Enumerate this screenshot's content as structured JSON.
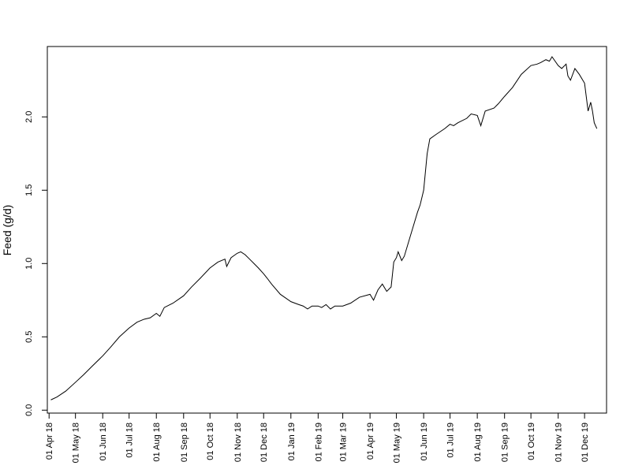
{
  "chart_data": {
    "type": "line",
    "title": "",
    "xlabel": "",
    "ylabel": "Feed (g/d)",
    "x_range": [
      "2018-03-30",
      "2019-12-26"
    ],
    "ylim": [
      -0.02,
      2.48
    ],
    "grid": false,
    "legend": "none",
    "line_color": "#000000",
    "x_ticks": [
      {
        "date": "2018-04-01",
        "label": "01 Apr 18"
      },
      {
        "date": "2018-05-01",
        "label": "01 May 18"
      },
      {
        "date": "2018-06-01",
        "label": "01 Jun 18"
      },
      {
        "date": "2018-07-01",
        "label": "01 Jul 18"
      },
      {
        "date": "2018-08-01",
        "label": "01 Aug 18"
      },
      {
        "date": "2018-09-01",
        "label": "01 Sep 18"
      },
      {
        "date": "2018-10-01",
        "label": "01 Oct 18"
      },
      {
        "date": "2018-11-01",
        "label": "01 Nov 18"
      },
      {
        "date": "2018-12-01",
        "label": "01 Dec 18"
      },
      {
        "date": "2019-01-01",
        "label": "01 Jan 19"
      },
      {
        "date": "2019-02-01",
        "label": "01 Feb 19"
      },
      {
        "date": "2019-03-01",
        "label": "01 Mar 19"
      },
      {
        "date": "2019-04-01",
        "label": "01 Apr 19"
      },
      {
        "date": "2019-05-01",
        "label": "01 May 19"
      },
      {
        "date": "2019-06-01",
        "label": "01 Jun 19"
      },
      {
        "date": "2019-07-01",
        "label": "01 Jul 19"
      },
      {
        "date": "2019-08-01",
        "label": "01 Aug 19"
      },
      {
        "date": "2019-09-01",
        "label": "01 Sep 19"
      },
      {
        "date": "2019-10-01",
        "label": "01 Oct 19"
      },
      {
        "date": "2019-11-01",
        "label": "01 Nov 19"
      },
      {
        "date": "2019-12-01",
        "label": "01 Dec 19"
      }
    ],
    "y_ticks": [
      {
        "value": 0.0,
        "label": "0.0"
      },
      {
        "value": 0.5,
        "label": "0.5"
      },
      {
        "value": 1.0,
        "label": "1.0"
      },
      {
        "value": 1.5,
        "label": "1.5"
      },
      {
        "value": 2.0,
        "label": "2.0"
      }
    ],
    "series": [
      {
        "x": [
          "2018-04-03",
          "2018-04-10",
          "2018-04-20",
          "2018-05-01",
          "2018-05-10",
          "2018-05-20",
          "2018-06-01",
          "2018-06-10",
          "2018-06-20",
          "2018-07-01",
          "2018-07-10",
          "2018-07-18",
          "2018-07-25",
          "2018-08-01",
          "2018-08-05",
          "2018-08-10",
          "2018-08-20",
          "2018-09-01",
          "2018-09-10",
          "2018-09-20",
          "2018-10-01",
          "2018-10-10",
          "2018-10-18",
          "2018-10-20",
          "2018-10-25",
          "2018-11-01",
          "2018-11-05",
          "2018-11-10",
          "2018-11-15",
          "2018-11-20",
          "2018-11-25",
          "2018-12-01",
          "2018-12-05",
          "2018-12-10",
          "2018-12-20",
          "2019-01-01",
          "2019-01-10",
          "2019-01-15",
          "2019-01-20",
          "2019-01-25",
          "2019-02-01",
          "2019-02-05",
          "2019-02-10",
          "2019-02-15",
          "2019-02-20",
          "2019-03-01",
          "2019-03-10",
          "2019-03-20",
          "2019-04-01",
          "2019-04-05",
          "2019-04-10",
          "2019-04-15",
          "2019-04-20",
          "2019-04-25",
          "2019-04-28",
          "2019-05-01",
          "2019-05-03",
          "2019-05-07",
          "2019-05-10",
          "2019-05-15",
          "2019-05-20",
          "2019-05-25",
          "2019-05-28",
          "2019-06-01",
          "2019-06-05",
          "2019-06-08",
          "2019-06-15",
          "2019-06-25",
          "2019-07-01",
          "2019-07-05",
          "2019-07-10",
          "2019-07-20",
          "2019-07-25",
          "2019-08-01",
          "2019-08-05",
          "2019-08-10",
          "2019-08-20",
          "2019-08-25",
          "2019-09-01",
          "2019-09-10",
          "2019-09-20",
          "2019-10-01",
          "2019-10-08",
          "2019-10-12",
          "2019-10-18",
          "2019-10-22",
          "2019-10-25",
          "2019-11-01",
          "2019-11-05",
          "2019-11-10",
          "2019-11-12",
          "2019-11-15",
          "2019-11-20",
          "2019-11-25",
          "2019-12-01",
          "2019-12-05",
          "2019-12-08",
          "2019-12-10",
          "2019-12-12",
          "2019-12-15"
        ],
        "values": [
          0.07,
          0.09,
          0.13,
          0.19,
          0.24,
          0.3,
          0.37,
          0.43,
          0.5,
          0.56,
          0.6,
          0.62,
          0.63,
          0.66,
          0.64,
          0.7,
          0.73,
          0.78,
          0.84,
          0.9,
          0.97,
          1.01,
          1.03,
          0.98,
          1.04,
          1.07,
          1.08,
          1.06,
          1.03,
          1.0,
          0.97,
          0.93,
          0.9,
          0.86,
          0.79,
          0.74,
          0.72,
          0.71,
          0.69,
          0.71,
          0.71,
          0.7,
          0.72,
          0.69,
          0.71,
          0.71,
          0.73,
          0.77,
          0.79,
          0.75,
          0.82,
          0.86,
          0.81,
          0.84,
          1.01,
          1.04,
          1.08,
          1.02,
          1.05,
          1.15,
          1.25,
          1.35,
          1.4,
          1.5,
          1.75,
          1.85,
          1.88,
          1.92,
          1.95,
          1.94,
          1.96,
          1.99,
          2.02,
          2.01,
          1.94,
          2.04,
          2.06,
          2.09,
          2.14,
          2.2,
          2.29,
          2.35,
          2.36,
          2.37,
          2.39,
          2.38,
          2.41,
          2.35,
          2.33,
          2.36,
          2.28,
          2.25,
          2.33,
          2.29,
          2.23,
          2.04,
          2.1,
          2.04,
          1.96,
          1.92
        ]
      }
    ]
  }
}
